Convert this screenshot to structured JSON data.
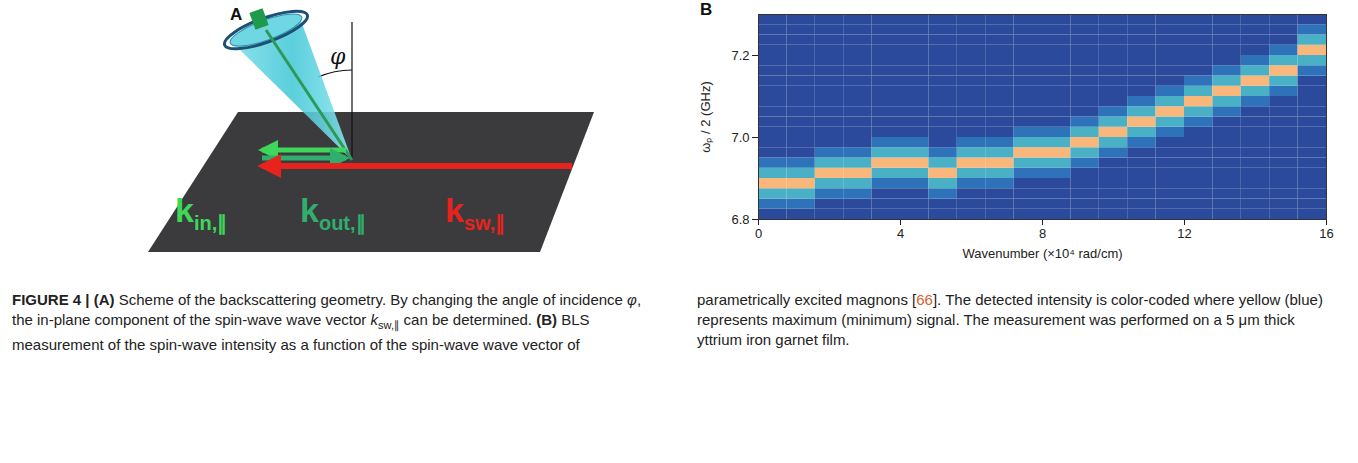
{
  "panel_a": {
    "letter": "A",
    "angle": "φ",
    "labels": [
      {
        "main": "k",
        "sub": "in,∥",
        "color": "#3fd75a"
      },
      {
        "main": "k",
        "sub": "out,∥",
        "color": "#2fae6e"
      },
      {
        "main": "k",
        "sub": "sw,∥",
        "color": "#e8231e"
      }
    ]
  },
  "chart_data": {
    "type": "heatmap",
    "letter": "B",
    "xlabel": "Wavenumber (×10⁴ rad/cm)",
    "ylabel": "ωₚ / 2 (GHz)",
    "xlim": [
      0,
      16
    ],
    "xticks": [
      0,
      4,
      8,
      12,
      16
    ],
    "ylim": [
      6.8,
      7.3
    ],
    "yticks": [
      6.8,
      {
        "value": 7,
        "label": "7.0"
      },
      7.2
    ],
    "colors": [
      "#2c4a9c",
      "#2f7fc2",
      "#49b0c6",
      "#a8d17a",
      "#f9b77c"
    ],
    "xbins": [
      0,
      0.8,
      1.6,
      2.4,
      3.2,
      4,
      4.8,
      5.6,
      6.4,
      7.2,
      8,
      8.8,
      9.6,
      10.4,
      11.2,
      12,
      12.8,
      13.6,
      14.4,
      15.2,
      16
    ],
    "ybins": [
      6.8,
      6.825,
      6.85,
      6.875,
      6.9,
      6.925,
      6.95,
      6.975,
      7,
      7.025,
      7.05,
      7.075,
      7.1,
      7.125,
      7.15,
      7.175,
      7.2,
      7.225,
      7.25,
      7.275,
      7.3
    ],
    "cells": [
      [
        0.2,
        0.35,
        0.6,
        1,
        0.6,
        0.35,
        0.2,
        0.2,
        0.2,
        0.2,
        0.2,
        0.2,
        0.2,
        0.2,
        0.2,
        0.2,
        0.2,
        0.2,
        0.2,
        0.2
      ],
      [
        0.2,
        0.35,
        0.6,
        1,
        0.6,
        0.35,
        0.2,
        0.2,
        0.2,
        0.2,
        0.2,
        0.2,
        0.2,
        0.2,
        0.2,
        0.2,
        0.2,
        0.2,
        0.2,
        0.2
      ],
      [
        0.2,
        0.2,
        0.35,
        0.6,
        1,
        0.6,
        0.35,
        0.2,
        0.2,
        0.2,
        0.2,
        0.2,
        0.2,
        0.2,
        0.2,
        0.2,
        0.2,
        0.2,
        0.2,
        0.2
      ],
      [
        0.2,
        0.2,
        0.35,
        0.6,
        1,
        0.6,
        0.35,
        0.2,
        0.2,
        0.2,
        0.2,
        0.2,
        0.2,
        0.2,
        0.2,
        0.2,
        0.2,
        0.2,
        0.2,
        0.2
      ],
      [
        0.2,
        0.2,
        0.2,
        0.35,
        0.6,
        1,
        0.6,
        0.35,
        0.2,
        0.2,
        0.2,
        0.2,
        0.2,
        0.2,
        0.2,
        0.2,
        0.2,
        0.2,
        0.2,
        0.2
      ],
      [
        0.2,
        0.2,
        0.2,
        0.35,
        0.6,
        1,
        0.6,
        0.35,
        0.2,
        0.2,
        0.2,
        0.2,
        0.2,
        0.2,
        0.2,
        0.2,
        0.2,
        0.2,
        0.2,
        0.2
      ],
      [
        0.2,
        0.2,
        0.35,
        0.6,
        1,
        0.6,
        0.35,
        0.2,
        0.2,
        0.2,
        0.2,
        0.2,
        0.2,
        0.2,
        0.2,
        0.2,
        0.2,
        0.2,
        0.2,
        0.2
      ],
      [
        0.2,
        0.2,
        0.2,
        0.35,
        0.6,
        1,
        0.6,
        0.35,
        0.2,
        0.2,
        0.2,
        0.2,
        0.2,
        0.2,
        0.2,
        0.2,
        0.2,
        0.2,
        0.2,
        0.2
      ],
      [
        0.2,
        0.2,
        0.2,
        0.35,
        0.6,
        1,
        0.6,
        0.35,
        0.2,
        0.2,
        0.2,
        0.2,
        0.2,
        0.2,
        0.2,
        0.2,
        0.2,
        0.2,
        0.2,
        0.2
      ],
      [
        0.2,
        0.2,
        0.2,
        0.2,
        0.35,
        0.6,
        1,
        0.6,
        0.35,
        0.2,
        0.2,
        0.2,
        0.2,
        0.2,
        0.2,
        0.2,
        0.2,
        0.2,
        0.2,
        0.2
      ],
      [
        0.2,
        0.2,
        0.2,
        0.2,
        0.35,
        0.6,
        1,
        0.6,
        0.35,
        0.2,
        0.2,
        0.2,
        0.2,
        0.2,
        0.2,
        0.2,
        0.2,
        0.2,
        0.2,
        0.2
      ],
      [
        0.2,
        0.2,
        0.2,
        0.2,
        0.2,
        0.35,
        0.6,
        1,
        0.6,
        0.35,
        0.2,
        0.2,
        0.2,
        0.2,
        0.2,
        0.2,
        0.2,
        0.2,
        0.2,
        0.2
      ],
      [
        0.2,
        0.2,
        0.2,
        0.2,
        0.2,
        0.2,
        0.35,
        0.6,
        1,
        0.6,
        0.35,
        0.2,
        0.2,
        0.2,
        0.2,
        0.2,
        0.2,
        0.2,
        0.2,
        0.2
      ],
      [
        0.2,
        0.2,
        0.2,
        0.2,
        0.2,
        0.2,
        0.2,
        0.35,
        0.6,
        1,
        0.6,
        0.35,
        0.2,
        0.2,
        0.2,
        0.2,
        0.2,
        0.2,
        0.2,
        0.2
      ],
      [
        0.2,
        0.2,
        0.2,
        0.2,
        0.2,
        0.2,
        0.2,
        0.2,
        0.35,
        0.6,
        1,
        0.6,
        0.35,
        0.2,
        0.2,
        0.2,
        0.2,
        0.2,
        0.2,
        0.2
      ],
      [
        0.2,
        0.2,
        0.2,
        0.2,
        0.2,
        0.2,
        0.2,
        0.2,
        0.2,
        0.35,
        0.6,
        1,
        0.6,
        0.35,
        0.2,
        0.2,
        0.2,
        0.2,
        0.2,
        0.2
      ],
      [
        0.2,
        0.2,
        0.2,
        0.2,
        0.2,
        0.2,
        0.2,
        0.2,
        0.2,
        0.2,
        0.35,
        0.6,
        1,
        0.6,
        0.35,
        0.2,
        0.2,
        0.2,
        0.2,
        0.2
      ],
      [
        0.2,
        0.2,
        0.2,
        0.2,
        0.2,
        0.2,
        0.2,
        0.2,
        0.2,
        0.2,
        0.2,
        0.35,
        0.6,
        1,
        0.6,
        0.35,
        0.2,
        0.2,
        0.2,
        0.2
      ],
      [
        0.2,
        0.2,
        0.2,
        0.2,
        0.2,
        0.2,
        0.2,
        0.2,
        0.2,
        0.2,
        0.2,
        0.2,
        0.35,
        0.6,
        1,
        0.6,
        0.35,
        0.2,
        0.2,
        0.2
      ],
      [
        0.2,
        0.2,
        0.2,
        0.2,
        0.2,
        0.2,
        0.2,
        0.2,
        0.2,
        0.2,
        0.2,
        0.2,
        0.2,
        0.2,
        0.35,
        0.6,
        1,
        0.6,
        0.35,
        0.2
      ]
    ]
  },
  "caption": [
    {
      "text": "FIGURE 4 | (A)",
      "style": "bold"
    },
    {
      "text": " Scheme of the backscattering geometry. By changing the angle of incidence ",
      "style": "normal"
    },
    {
      "text": "φ",
      "style": "italic"
    },
    {
      "text": ", the in-plane component of the spin-wave wave vector ",
      "style": "normal"
    },
    {
      "text": "k",
      "style": "italic"
    },
    {
      "text": "sw,∥",
      "style": "sub"
    },
    {
      "text": " can be determined. ",
      "style": "normal"
    },
    {
      "text": "(B)",
      "style": "bold"
    },
    {
      "text": " BLS measurement of the spin-wave intensity as a function of the spin-wave wave vector of parametrically excited magnons [",
      "style": "normal"
    },
    {
      "text": "66",
      "style": "link"
    },
    {
      "text": "]. The detected intensity is color-coded where yellow (blue) represents maximum (minimum) signal. The measurement was performed on a 5 μm thick yttrium iron garnet film.",
      "style": "normal"
    }
  ]
}
